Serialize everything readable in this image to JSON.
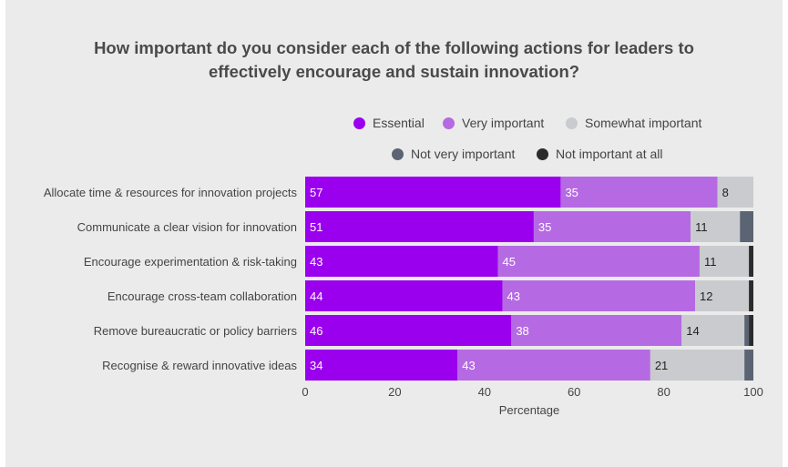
{
  "title_line1": "How important do you consider each of the following actions for leaders to",
  "title_line2": "effectively encourage and sustain innovation?",
  "colors": {
    "background": "#ebebeb",
    "Essential": "#9b00ee",
    "Very important": "#b56ae3",
    "Somewhat important": "#c9cbce",
    "Not very important": "#5b6472",
    "Not important at all": "#2b2b2b"
  },
  "chart_data": {
    "type": "bar",
    "orientation": "horizontal",
    "stacked": true,
    "categories": [
      "Allocate time & resources for innovation projects",
      "Communicate a clear vision for innovation",
      "Encourage experimentation & risk-taking",
      "Encourage cross-team collaboration",
      "Remove bureaucratic or policy barriers",
      "Recognise & reward innovative ideas"
    ],
    "series": [
      {
        "name": "Essential",
        "values": [
          57,
          51,
          43,
          44,
          46,
          34
        ]
      },
      {
        "name": "Very important",
        "values": [
          35,
          35,
          45,
          43,
          38,
          43
        ]
      },
      {
        "name": "Somewhat important",
        "values": [
          8,
          11,
          11,
          12,
          14,
          21
        ]
      },
      {
        "name": "Not very important",
        "values": [
          0,
          3,
          0,
          0,
          1,
          2
        ]
      },
      {
        "name": "Not important at all",
        "values": [
          0,
          0,
          1,
          1,
          1,
          0
        ]
      }
    ],
    "labeled_series": [
      "Essential",
      "Very important",
      "Somewhat important"
    ],
    "xlabel": "Percentage",
    "xlim": [
      0,
      100
    ],
    "xticks": [
      0,
      20,
      40,
      60,
      80,
      100
    ],
    "legend_position": "top",
    "grid": false
  }
}
